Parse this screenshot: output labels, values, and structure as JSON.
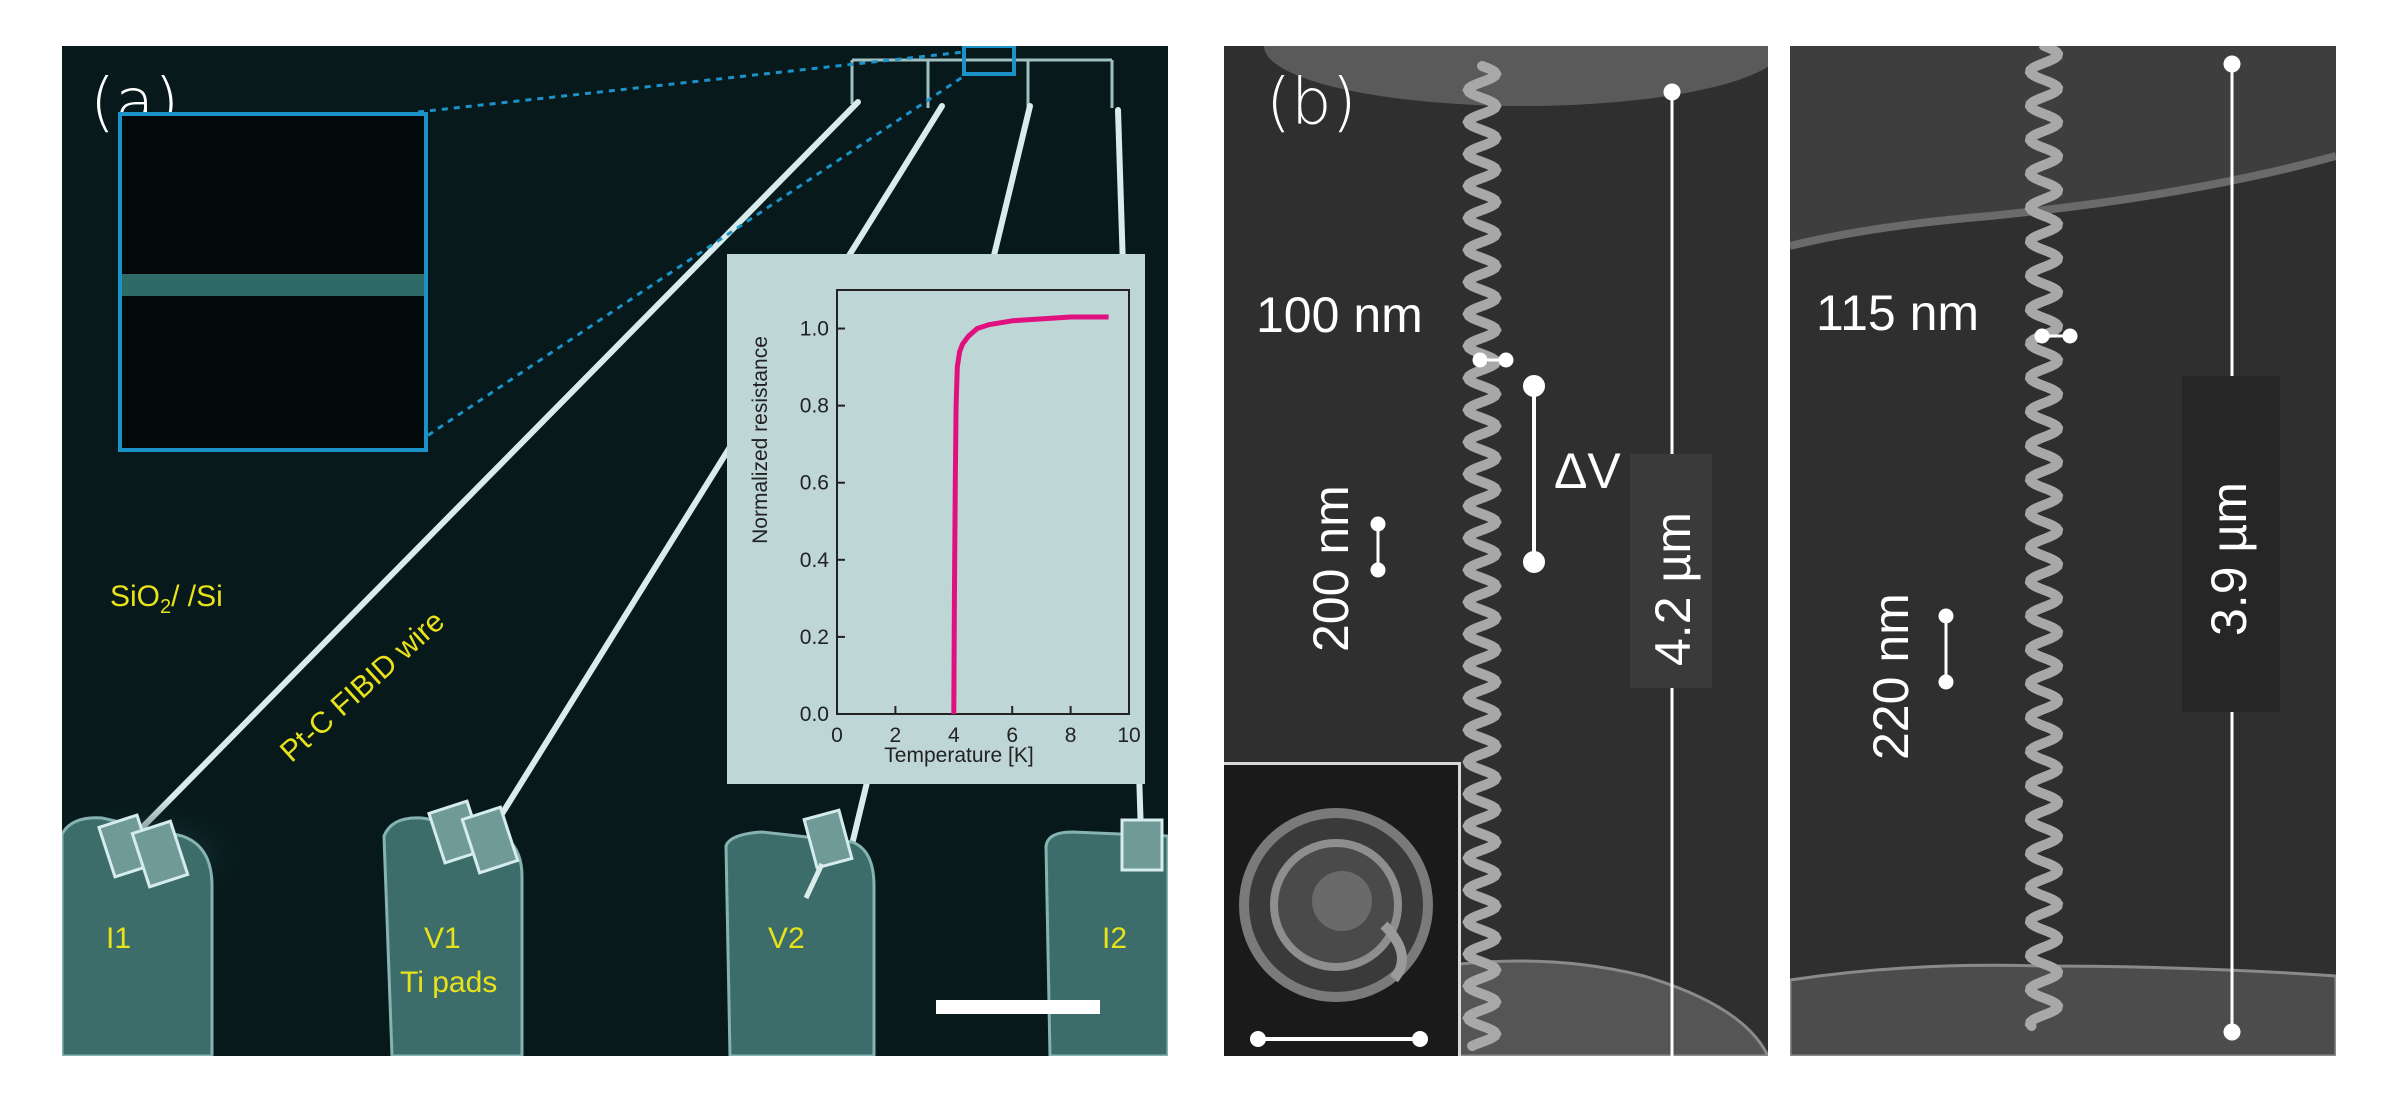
{
  "panel_a": {
    "label": "(a)",
    "substrate_label_main": "SiO",
    "substrate_label_sub": "2",
    "substrate_label_rest": "/ /Si",
    "wire_label": "Pt-C FIBID wire",
    "pads": [
      "I1",
      "V1",
      "V2",
      "I2"
    ],
    "pads_sub_label": "Ti pads",
    "inset_chart": {
      "chart_data": {
        "type": "line",
        "xlabel": "Temperature [K]",
        "ylabel": "Normalized resistance",
        "xlim": [
          0,
          10
        ],
        "ylim": [
          0,
          1.1
        ],
        "xticks": [
          "0",
          "2",
          "4",
          "6",
          "8",
          "10"
        ],
        "yticks": [
          "0.0",
          "0.2",
          "0.4",
          "0.6",
          "0.8",
          "1.0"
        ],
        "series": [
          {
            "color": "#e0107f",
            "x": [
              4.0,
              4.02,
              4.05,
              4.08,
              4.12,
              4.2,
              4.3,
              4.5,
              4.8,
              5.2,
              6.0,
              7.0,
              8.0,
              9.3
            ],
            "y": [
              0.0,
              0.3,
              0.6,
              0.8,
              0.9,
              0.94,
              0.96,
              0.98,
              1.0,
              1.01,
              1.02,
              1.025,
              1.03,
              1.03
            ]
          }
        ]
      }
    }
  },
  "panel_b": {
    "label": "(b)",
    "left": {
      "pitch_label": "100 nm",
      "scale_small_label": "200 nm",
      "delta_label": "ΔV",
      "length_label": "4.2 µm"
    },
    "right": {
      "pitch_label": "115 nm",
      "scale_small_label": "220 nm",
      "length_label": "3.9 µm"
    }
  },
  "colors": {
    "accent_blue": "#1b93c8",
    "label_yellow": "#e8e21a",
    "curve_magenta": "#e0107f"
  }
}
